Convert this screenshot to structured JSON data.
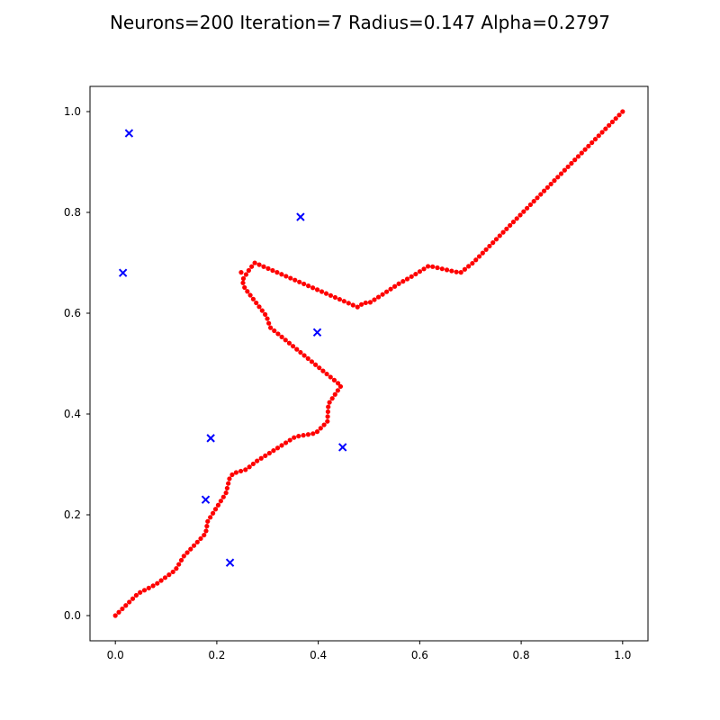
{
  "chart_data": {
    "type": "scatter",
    "title": "Neurons=200 Iteration=7 Radius=0.147 Alpha=0.2797",
    "xlabel": "",
    "ylabel": "",
    "xlim": [
      -0.05,
      1.05
    ],
    "ylim": [
      -0.05,
      1.05
    ],
    "xticks": [
      0.0,
      0.2,
      0.4,
      0.6,
      0.8,
      1.0
    ],
    "yticks": [
      0.0,
      0.2,
      0.4,
      0.6,
      0.8,
      1.0
    ],
    "xtick_labels": [
      "0.0",
      "0.2",
      "0.4",
      "0.6",
      "0.8",
      "1.0"
    ],
    "ytick_labels": [
      "0.0",
      "0.2",
      "0.4",
      "0.6",
      "0.8",
      "1.0"
    ],
    "grid": false,
    "cities": {
      "marker": "x",
      "color": "#0000ff",
      "points": [
        [
          0.027,
          0.957
        ],
        [
          0.015,
          0.68
        ],
        [
          0.365,
          0.791
        ],
        [
          0.398,
          0.562
        ],
        [
          0.188,
          0.352
        ],
        [
          0.448,
          0.334
        ],
        [
          0.178,
          0.23
        ],
        [
          0.226,
          0.105
        ]
      ]
    },
    "neurons": {
      "marker": "dot",
      "color": "#ff0000",
      "line_color": "#aaaaaa",
      "path": [
        [
          0.0,
          0.0
        ],
        [
          0.045,
          0.044
        ],
        [
          0.08,
          0.062
        ],
        [
          0.118,
          0.09
        ],
        [
          0.135,
          0.118
        ],
        [
          0.178,
          0.163
        ],
        [
          0.182,
          0.187
        ],
        [
          0.218,
          0.243
        ],
        [
          0.225,
          0.272
        ],
        [
          0.232,
          0.282
        ],
        [
          0.258,
          0.29
        ],
        [
          0.278,
          0.306
        ],
        [
          0.308,
          0.325
        ],
        [
          0.355,
          0.355
        ],
        [
          0.395,
          0.362
        ],
        [
          0.418,
          0.385
        ],
        [
          0.42,
          0.42
        ],
        [
          0.445,
          0.456
        ],
        [
          0.305,
          0.572
        ],
        [
          0.298,
          0.594
        ],
        [
          0.255,
          0.65
        ],
        [
          0.25,
          0.665
        ],
        [
          0.265,
          0.688
        ],
        [
          0.275,
          0.7
        ],
        [
          0.478,
          0.612
        ],
        [
          0.49,
          0.621
        ],
        [
          0.5,
          0.62
        ],
        [
          0.528,
          0.638
        ],
        [
          0.558,
          0.658
        ],
        [
          0.588,
          0.675
        ],
        [
          0.618,
          0.694
        ],
        [
          0.68,
          0.68
        ],
        [
          0.705,
          0.7
        ],
        [
          1.0,
          1.0
        ]
      ],
      "extra": [
        [
          0.248,
          0.681
        ]
      ]
    }
  }
}
